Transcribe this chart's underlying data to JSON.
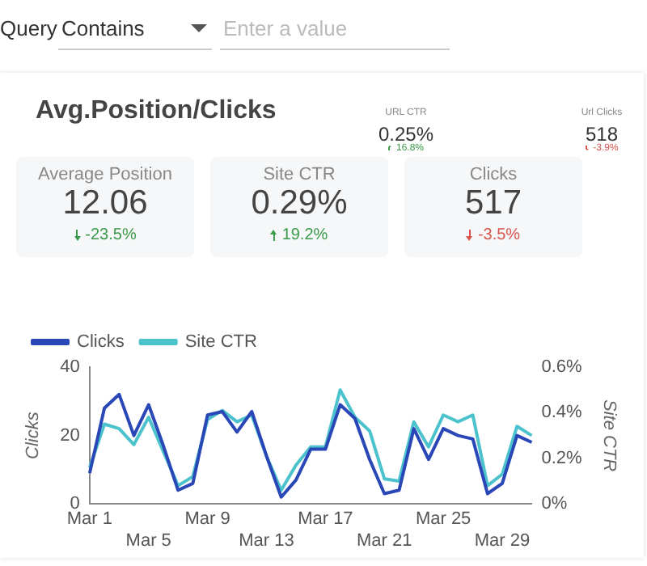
{
  "chart_data": {
    "type": "line",
    "title": "Avg.Position/Clicks",
    "annotations": [
      "Query",
      "Contains",
      "Enter a value",
      "URL CTR",
      "0.25%",
      "16.8%",
      "Url Clicks",
      "518",
      "-3.9%",
      "Average Position",
      "12.06",
      "-23.5%",
      "Site CTR",
      "0.29%",
      "19.2%",
      "Clicks",
      "517",
      "-3.5%"
    ],
    "categories": [
      "Mar 1",
      null,
      null,
      null,
      "Mar 5",
      null,
      null,
      null,
      "Mar 9",
      null,
      null,
      null,
      "Mar 13",
      null,
      null,
      null,
      "Mar 17",
      null,
      null,
      null,
      "Mar 21",
      null,
      null,
      null,
      "Mar 25",
      null,
      null,
      null,
      "Mar 29",
      null,
      null
    ],
    "series": [
      {
        "name": "Clicks",
        "color": "#2a47b8",
        "values": [
          9,
          28,
          32,
          20,
          29,
          17,
          4,
          6,
          26,
          27,
          21,
          27,
          14,
          2,
          7,
          16,
          16,
          29,
          25,
          13,
          3,
          4,
          22,
          13,
          22,
          20,
          19,
          3,
          6,
          20,
          18
        ]
      },
      {
        "name": "Site CTR",
        "color": "#4cc3cc",
        "axis": "y2",
        "values": [
          0.16,
          0.35,
          0.33,
          0.26,
          0.38,
          0.23,
          0.08,
          0.12,
          0.37,
          0.41,
          0.36,
          0.39,
          0.21,
          0.06,
          0.17,
          0.25,
          0.25,
          0.5,
          0.38,
          0.32,
          0.11,
          0.1,
          0.36,
          0.25,
          0.39,
          0.36,
          0.39,
          0.08,
          0.13,
          0.34,
          0.3
        ]
      }
    ],
    "ylabel": "Clicks",
    "y2label": "Site CTR",
    "ylim": [
      0,
      40
    ],
    "yticks": [
      0,
      20,
      40
    ],
    "y2lim": [
      0,
      0.6
    ],
    "y2ticks": [
      {
        "value": 0,
        "label": "0%"
      },
      {
        "value": 0.2,
        "label": "0.2%"
      },
      {
        "value": 0.4,
        "label": "0.4%"
      },
      {
        "value": 0.6,
        "label": "0.6%"
      }
    ],
    "legend": "top",
    "grid": false,
    "marker": "none",
    "line_style": "solid"
  }
}
